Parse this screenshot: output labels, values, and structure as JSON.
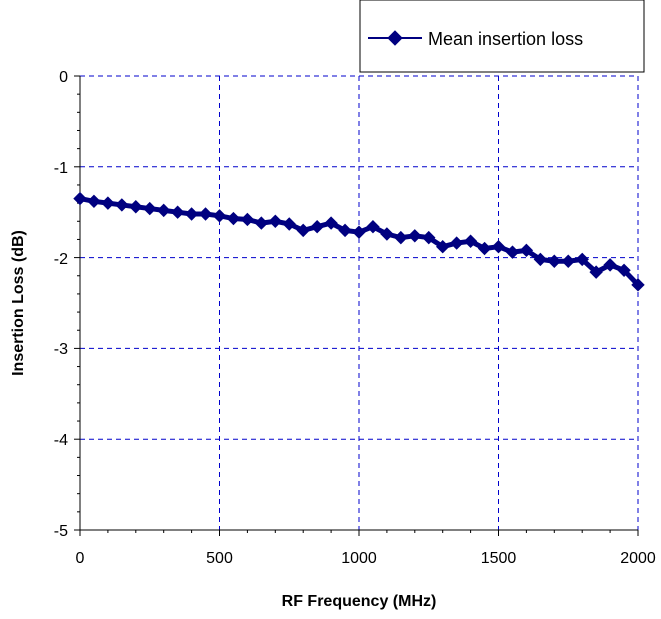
{
  "chart_data": {
    "type": "line",
    "title": "",
    "xlabel": "RF Frequency (MHz)",
    "ylabel": "Insertion Loss (dB)",
    "xlim": [
      0,
      2000
    ],
    "ylim": [
      -5,
      0
    ],
    "x_ticks": [
      "0",
      "500",
      "1000",
      "1500",
      "2000"
    ],
    "y_ticks": [
      "0",
      "-1",
      "-2",
      "-3",
      "-4",
      "-5"
    ],
    "grid": "dashed major gridlines",
    "legend_position": "top-right",
    "colors": {
      "series": "#000080",
      "grid": "#0000cc",
      "axis": "#000000"
    },
    "series": [
      {
        "name": "Mean insertion loss",
        "marker": "diamond",
        "x": [
          0,
          50,
          100,
          150,
          200,
          250,
          300,
          350,
          400,
          450,
          500,
          550,
          600,
          650,
          700,
          750,
          800,
          850,
          900,
          950,
          1000,
          1050,
          1100,
          1150,
          1200,
          1250,
          1300,
          1350,
          1400,
          1450,
          1500,
          1550,
          1600,
          1650,
          1700,
          1750,
          1800,
          1850,
          1900,
          1950,
          2000
        ],
        "y": [
          -1.35,
          -1.38,
          -1.4,
          -1.42,
          -1.44,
          -1.46,
          -1.48,
          -1.5,
          -1.52,
          -1.52,
          -1.54,
          -1.57,
          -1.58,
          -1.62,
          -1.6,
          -1.63,
          -1.7,
          -1.66,
          -1.62,
          -1.7,
          -1.72,
          -1.66,
          -1.74,
          -1.78,
          -1.76,
          -1.78,
          -1.88,
          -1.84,
          -1.82,
          -1.9,
          -1.88,
          -1.94,
          -1.92,
          -2.02,
          -2.04,
          -2.04,
          -2.02,
          -2.16,
          -2.08,
          -2.14,
          -2.3
        ]
      }
    ]
  }
}
